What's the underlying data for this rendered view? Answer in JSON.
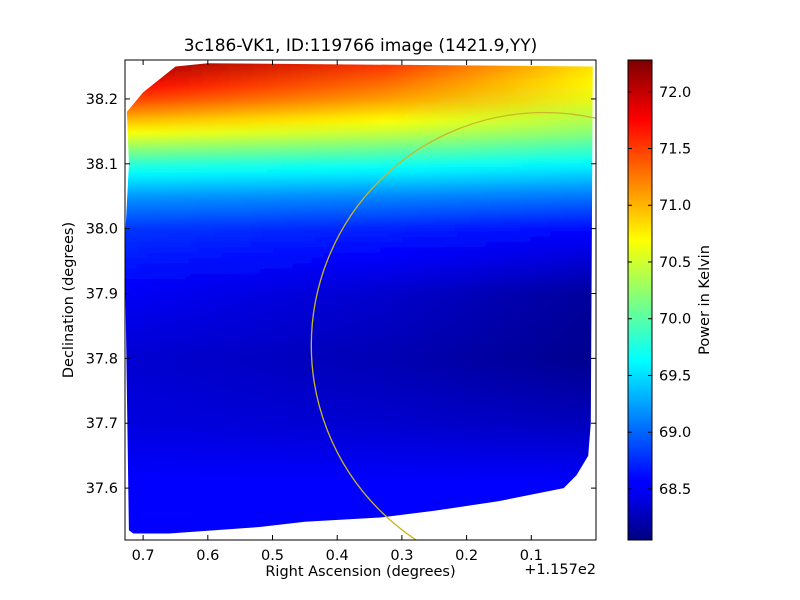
{
  "chart_data": {
    "type": "heatmap",
    "title": "3c186-VK1, ID:119766 image (1421.9,YY)",
    "xlabel": "Right Ascension (degrees)",
    "ylabel": "Declination (degrees)",
    "x_offset_text": "+1.157e2",
    "xlim": [
      0.728,
      0.0
    ],
    "ylim": [
      37.52,
      38.26
    ],
    "x_ticks": [
      0.7,
      0.6,
      0.5,
      0.4,
      0.3,
      0.2,
      0.1
    ],
    "x_tick_labels": [
      "0.7",
      "0.6",
      "0.5",
      "0.4",
      "0.3",
      "0.2",
      "0.1"
    ],
    "y_ticks": [
      37.6,
      37.7,
      37.8,
      37.9,
      38.0,
      38.1,
      38.2
    ],
    "y_tick_labels": [
      "37.6",
      "37.7",
      "37.8",
      "37.9",
      "38.0",
      "38.1",
      "38.2"
    ],
    "colorbar": {
      "label": "Power in Kelvin",
      "range": [
        68.05,
        72.28
      ],
      "ticks": [
        68.5,
        69.0,
        69.5,
        70.0,
        70.5,
        71.0,
        71.5,
        72.0
      ],
      "tick_labels": [
        "68.5",
        "69.0",
        "69.5",
        "70.0",
        "70.5",
        "71.0",
        "71.5",
        "72.0"
      ],
      "colormap": "jet"
    },
    "field": {
      "dec_levels": [
        37.52,
        37.6,
        37.7,
        37.8,
        37.9,
        38.0,
        38.05,
        38.1,
        38.15,
        38.2,
        38.26
      ],
      "values_east": [
        68.55,
        68.6,
        68.45,
        68.4,
        68.55,
        68.8,
        69.2,
        69.8,
        70.7,
        71.5,
        72.25
      ],
      "values_west": [
        68.65,
        68.6,
        68.3,
        68.1,
        68.15,
        68.6,
        69.05,
        69.6,
        70.2,
        70.6,
        70.8
      ],
      "coverage_polygon": [
        [
          0.722,
          37.535
        ],
        [
          0.715,
          37.53
        ],
        [
          0.66,
          37.53
        ],
        [
          0.52,
          37.54
        ],
        [
          0.45,
          37.548
        ],
        [
          0.33,
          37.555
        ],
        [
          0.25,
          37.565
        ],
        [
          0.15,
          37.58
        ],
        [
          0.05,
          37.6
        ],
        [
          0.03,
          37.62
        ],
        [
          0.012,
          37.65
        ],
        [
          0.008,
          37.7
        ],
        [
          0.005,
          38.25
        ],
        [
          0.6,
          38.255
        ],
        [
          0.65,
          38.25
        ],
        [
          0.7,
          38.21
        ],
        [
          0.725,
          38.18
        ],
        [
          0.722,
          38.1
        ],
        [
          0.727,
          38.0
        ],
        [
          0.728,
          37.95
        ],
        [
          0.722,
          37.535
        ]
      ]
    },
    "circle": {
      "center": [
        0.08,
        37.82
      ],
      "radius": 0.36,
      "color": "#c8b828"
    }
  }
}
